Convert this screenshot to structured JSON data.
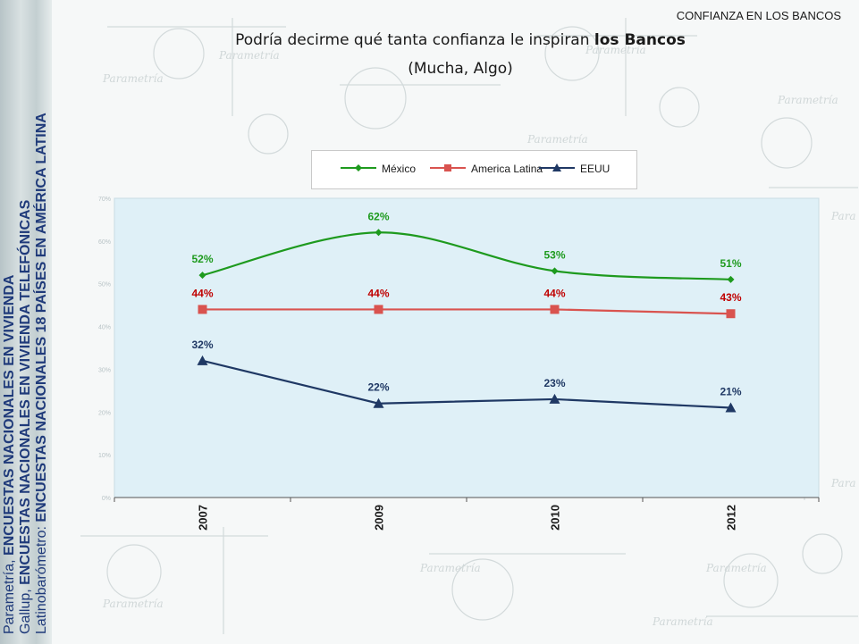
{
  "header": {
    "tag": "CONFIANZA EN LOS BANCOS"
  },
  "title_prefix": "Podría decirme qué tanta confianza le inspiran ",
  "title_bold": "los Bancos",
  "subtitle": "(Mucha, Algo)",
  "sources": [
    {
      "prefix": "Parametría, ",
      "bold": "ENCUESTAS NACIONALES EN VIVIENDA"
    },
    {
      "prefix": "Gallup, ",
      "bold": "ENCUESTAS NACIONALES EN VIVIENDA TELEFÓNICAS"
    },
    {
      "prefix": "Latinobarómetro: ",
      "bold": "ENCUESTAS NACIONALES 18 PAÍSES EN AMÉRICA LATINA"
    }
  ],
  "colors": {
    "mexico": "#1e9a1e",
    "america_latina": "#d9534f",
    "eeuu": "#1f3864",
    "plot_bg": "#dff0f7",
    "label_mexico": "#1e9a1e",
    "label_america_latina": "#c00000",
    "label_eeuu": "#1f3864"
  },
  "chart_data": {
    "type": "line",
    "categories": [
      "2007",
      "2009",
      "2010",
      "2012"
    ],
    "series": [
      {
        "name": "México",
        "values": [
          52,
          62,
          53,
          51
        ],
        "labels": [
          "52%",
          "62%",
          "53%",
          "51%"
        ],
        "marker": "diamond",
        "smooth": true
      },
      {
        "name": "America Latina",
        "values": [
          44,
          44,
          44,
          43
        ],
        "labels": [
          "44%",
          "44%",
          "44%",
          "43%"
        ],
        "marker": "square",
        "smooth": false
      },
      {
        "name": "EEUU",
        "values": [
          32,
          22,
          23,
          21
        ],
        "labels": [
          "32%",
          "22%",
          "23%",
          "21%"
        ],
        "marker": "triangle",
        "smooth": false
      }
    ],
    "ylim": [
      0,
      70
    ],
    "yticks": [
      "0%",
      "10%",
      "20%",
      "30%",
      "40%",
      "50%",
      "60%",
      "70%"
    ],
    "legend_position": "top"
  }
}
